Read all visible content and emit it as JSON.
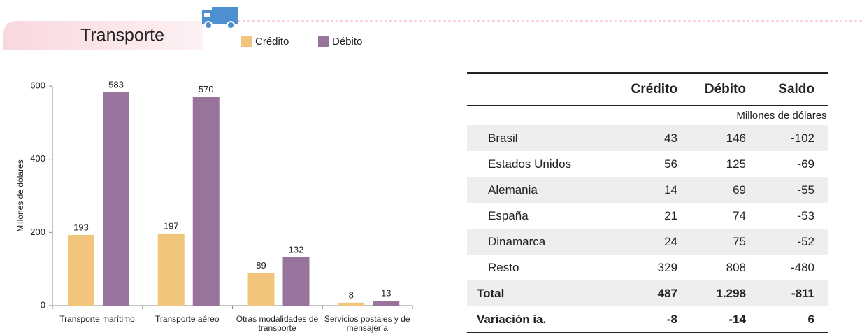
{
  "header": {
    "title": "Transporte"
  },
  "chart_data": {
    "type": "bar",
    "ylabel": "Millones de dólares",
    "categories": [
      "Transporte marítimo",
      "Transporte aéreo",
      "Otras modalidades de transporte",
      "Servicios postales y de mensajería"
    ],
    "series": [
      {
        "name": "Crédito",
        "color": "#f2c57c",
        "values": [
          193,
          197,
          89,
          8
        ]
      },
      {
        "name": "Débito",
        "color": "#98749c",
        "values": [
          583,
          570,
          132,
          13
        ]
      }
    ],
    "ylim": [
      0,
      600
    ],
    "yticks": [
      0,
      200,
      400,
      600
    ]
  },
  "table": {
    "columns": [
      "Crédito",
      "Débito",
      "Saldo"
    ],
    "unit": "Millones de dólares",
    "rows": [
      [
        "Brasil",
        "43",
        "146",
        "-102"
      ],
      [
        "Estados Unidos",
        "56",
        "125",
        "-69"
      ],
      [
        "Alemania",
        "14",
        "69",
        "-55"
      ],
      [
        "España",
        "21",
        "74",
        "-53"
      ],
      [
        "Dinamarca",
        "24",
        "75",
        "-52"
      ],
      [
        "Resto",
        "329",
        "808",
        "-480"
      ],
      [
        "Total",
        "487",
        "1.298",
        "-811"
      ],
      [
        "Variación ia.",
        "-8",
        "-14",
        "6"
      ]
    ]
  }
}
